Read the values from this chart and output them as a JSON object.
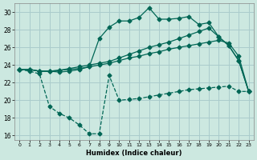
{
  "xlabel": "Humidex (Indice chaleur)",
  "background_color": "#cce8e0",
  "grid_color": "#aacccc",
  "line_color": "#006655",
  "xlim": [
    -0.5,
    23.5
  ],
  "ylim": [
    15.5,
    31.0
  ],
  "xticks": [
    0,
    1,
    2,
    3,
    4,
    5,
    6,
    7,
    8,
    9,
    10,
    11,
    12,
    13,
    14,
    15,
    16,
    17,
    18,
    19,
    20,
    21,
    22,
    23
  ],
  "yticks": [
    16,
    18,
    20,
    22,
    24,
    26,
    28,
    30
  ],
  "line_upper_x": [
    0,
    1,
    2,
    3,
    4,
    5,
    6,
    7,
    8,
    9,
    10,
    11,
    12,
    13,
    14,
    15,
    16,
    17,
    18,
    19,
    20,
    21,
    22,
    23
  ],
  "line_upper_y": [
    23.5,
    23.5,
    23.3,
    23.3,
    23.4,
    23.5,
    23.6,
    23.8,
    27.0,
    28.3,
    29.0,
    29.0,
    29.4,
    30.5,
    29.2,
    29.2,
    29.3,
    29.5,
    28.6,
    28.8,
    27.2,
    26.2,
    24.5,
    21.0
  ],
  "line_mid1_x": [
    0,
    1,
    2,
    3,
    4,
    5,
    6,
    7,
    8,
    9,
    10,
    11,
    12,
    13,
    14,
    15,
    16,
    17,
    18,
    19,
    20,
    21,
    22,
    23
  ],
  "line_mid1_y": [
    23.5,
    23.5,
    23.3,
    23.3,
    23.4,
    23.6,
    23.8,
    24.0,
    24.2,
    24.4,
    24.8,
    25.2,
    25.6,
    26.0,
    26.3,
    26.6,
    27.0,
    27.4,
    27.8,
    28.2,
    27.2,
    26.2,
    24.5,
    21.0
  ],
  "line_mid2_x": [
    0,
    1,
    2,
    3,
    4,
    5,
    6,
    7,
    8,
    9,
    10,
    11,
    12,
    13,
    14,
    15,
    16,
    17,
    18,
    19,
    20,
    21,
    22,
    23
  ],
  "line_mid2_y": [
    23.5,
    23.5,
    23.3,
    23.3,
    23.2,
    23.3,
    23.5,
    23.8,
    24.0,
    24.2,
    24.5,
    24.8,
    25.0,
    25.3,
    25.5,
    25.8,
    26.0,
    26.2,
    26.4,
    26.6,
    26.8,
    26.5,
    25.0,
    21.0
  ],
  "line_lower_x": [
    0,
    1,
    2,
    3,
    4,
    5,
    6,
    7,
    8,
    9,
    10,
    11,
    12,
    13,
    14,
    15,
    16,
    17,
    18,
    19,
    20,
    21,
    22,
    23
  ],
  "line_lower_y": [
    23.5,
    23.3,
    23.0,
    19.3,
    18.5,
    18.0,
    17.2,
    16.2,
    16.2,
    22.8,
    20.0,
    20.1,
    20.2,
    20.4,
    20.6,
    20.8,
    21.0,
    21.2,
    21.3,
    21.4,
    21.5,
    21.6,
    21.0,
    21.0
  ]
}
